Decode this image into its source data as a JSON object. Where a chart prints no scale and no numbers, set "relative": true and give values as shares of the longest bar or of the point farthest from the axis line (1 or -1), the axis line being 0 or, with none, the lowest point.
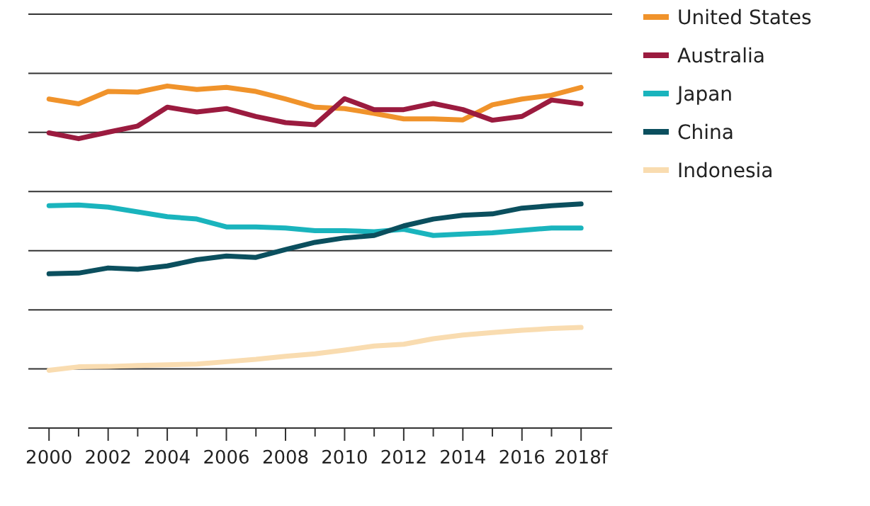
{
  "chart_data": {
    "type": "line",
    "relative": true,
    "grid": "y",
    "legend": "top right",
    "x": [
      2000,
      2001,
      2002,
      2003,
      2004,
      2005,
      2006,
      2007,
      2008,
      2009,
      2010,
      2011,
      2012,
      2013,
      2014,
      2015,
      2016,
      2017,
      2018
    ],
    "xlim": [
      1999.3,
      2019.05
    ],
    "xticks": [
      2000,
      {
        "value": 2001,
        "label": null
      },
      2002,
      {
        "value": 2003,
        "label": null
      },
      2004,
      {
        "value": 2005,
        "label": null
      },
      2006,
      {
        "value": 2007,
        "label": null
      },
      2008,
      {
        "value": 2009,
        "label": null
      },
      2010,
      {
        "value": 2011,
        "label": null
      },
      2012,
      {
        "value": 2013,
        "label": null
      },
      2014,
      {
        "value": 2015,
        "label": null
      },
      2016,
      {
        "value": 2017,
        "label": null
      },
      {
        "value": 2018,
        "label": "2018f"
      }
    ],
    "series": [
      {
        "name": "United States",
        "color": "#f0932b",
        "values": [
          0.962,
          0.948,
          0.984,
          0.982,
          1,
          0.99,
          0.996,
          0.984,
          0.962,
          0.938,
          0.934,
          0.92,
          0.904,
          0.904,
          0.901,
          0.945,
          0.962,
          0.973,
          0.996
        ]
      },
      {
        "name": "Australia",
        "color": "#9b1b3f",
        "values": [
          0.863,
          0.846,
          0.865,
          0.883,
          0.938,
          0.924,
          0.934,
          0.911,
          0.893,
          0.887,
          0.963,
          0.931,
          0.931,
          0.949,
          0.931,
          0.9,
          0.911,
          0.959,
          0.948
        ]
      },
      {
        "name": "Japan",
        "color": "#1ab4bd",
        "values": [
          0.65,
          0.652,
          0.646,
          0.632,
          0.618,
          0.611,
          0.588,
          0.588,
          0.585,
          0.577,
          0.577,
          0.574,
          0.581,
          0.563,
          0.567,
          0.571,
          0.578,
          0.585,
          0.585
        ]
      },
      {
        "name": "China",
        "color": "#0b4f5e",
        "values": [
          0.451,
          0.453,
          0.468,
          0.464,
          0.474,
          0.492,
          0.503,
          0.499,
          0.522,
          0.543,
          0.556,
          0.563,
          0.591,
          0.611,
          0.622,
          0.626,
          0.643,
          0.65,
          0.655
        ]
      },
      {
        "name": "Indonesia",
        "color": "#f9dcb0",
        "values": [
          0.169,
          0.179,
          0.18,
          0.183,
          0.185,
          0.187,
          0.194,
          0.201,
          0.21,
          0.217,
          0.228,
          0.24,
          0.245,
          0.261,
          0.272,
          0.279,
          0.286,
          0.291,
          0.294
        ]
      }
    ]
  }
}
